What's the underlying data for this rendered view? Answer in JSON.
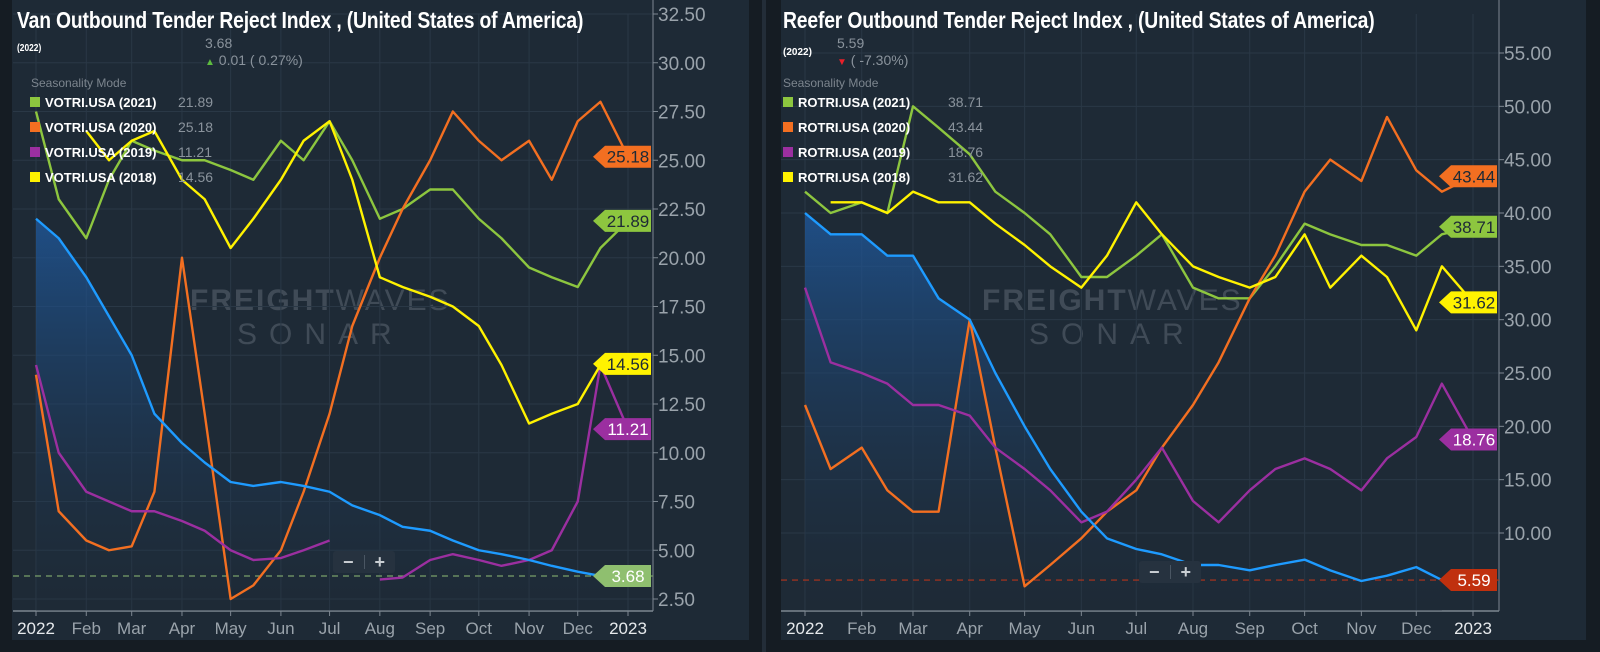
{
  "watermark": {
    "brand_bold": "FREIGHT",
    "brand_light": "WAVES",
    "product": "SONAR"
  },
  "chart_data": [
    {
      "type": "line",
      "title": "Van Outbound Tender Reject Index , (United States of America)",
      "year_tag": "(2022)",
      "current_value": "3.68",
      "change": "0.01 ( 0.27%)",
      "change_direction": "up",
      "mode_label": "Seasonality Mode",
      "ylim": [
        2.5,
        32.5
      ],
      "yticks": [
        "2.50",
        "5.00",
        "7.50",
        "10.00",
        "12.50",
        "15.00",
        "17.50",
        "20.00",
        "22.50",
        "25.00",
        "27.50",
        "30.00",
        "32.50"
      ],
      "xtick_labels": [
        "2022",
        "Feb",
        "Mar",
        "Apr",
        "May",
        "Jun",
        "Jul",
        "Aug",
        "Sep",
        "Oct",
        "Nov",
        "Dec",
        "2023"
      ],
      "grid": true,
      "x": [
        "2022-01-01",
        "2022-01-15",
        "2022-02-01",
        "2022-02-15",
        "2022-03-01",
        "2022-03-15",
        "2022-04-01",
        "2022-04-15",
        "2022-05-01",
        "2022-05-15",
        "2022-06-01",
        "2022-06-15",
        "2022-07-01",
        "2022-07-15",
        "2022-08-01",
        "2022-08-15",
        "2022-09-01",
        "2022-09-15",
        "2022-10-01",
        "2022-10-15",
        "2022-11-01",
        "2022-11-15",
        "2022-12-01",
        "2022-12-15",
        "2023-01-01"
      ],
      "current": {
        "value": 3.68,
        "color": "#1e9bff",
        "flag_color": "#8fbf6f",
        "line_color": "#7aa06a",
        "values": [
          22,
          21,
          19,
          17,
          15,
          12,
          10.5,
          9.5,
          8.5,
          8.3,
          8.5,
          8.3,
          8,
          7.3,
          6.8,
          6.2,
          6,
          5.5,
          5,
          4.8,
          4.5,
          4.2,
          3.9,
          3.68,
          null
        ]
      },
      "series": [
        {
          "name": "VOTRI.USA (2021)",
          "last": "21.89",
          "color": "#8dc63f",
          "values": [
            27.5,
            23,
            21,
            24,
            26,
            25.5,
            25,
            25,
            24.5,
            24,
            26,
            25,
            27,
            25,
            22,
            22.5,
            23.5,
            23.5,
            22,
            21,
            19.5,
            19,
            18.5,
            20.5,
            21.89
          ]
        },
        {
          "name": "VOTRI.USA (2020)",
          "last": "25.18",
          "color": "#f36f21",
          "values": [
            14,
            7,
            5.5,
            5,
            5.2,
            8,
            20,
            12,
            2.5,
            3.2,
            5,
            8,
            12,
            16.5,
            20,
            22.5,
            25,
            27.5,
            26,
            25,
            26,
            24,
            27,
            28,
            25.18
          ]
        },
        {
          "name": "VOTRI.USA (2019)",
          "last": "11.21",
          "color": "#9b2fa0",
          "values": [
            14.5,
            10,
            8,
            7.5,
            7,
            7,
            6.5,
            6,
            5,
            4.5,
            4.6,
            5,
            5.5,
            null,
            3.5,
            3.6,
            4.5,
            4.8,
            4.5,
            4.2,
            4.5,
            5,
            7.5,
            14.5,
            11.21
          ]
        },
        {
          "name": "VOTRI.USA (2018)",
          "last": "14.56",
          "color": "#fff200",
          "values": [
            null,
            null,
            26.5,
            25,
            26,
            26.5,
            24,
            23,
            20.5,
            22,
            24,
            26,
            27,
            24,
            19,
            18.5,
            18,
            17.5,
            16.5,
            14.5,
            11.5,
            12,
            12.5,
            14.5,
            14.56
          ]
        }
      ],
      "zoom_out": "−",
      "zoom_in": "+"
    },
    {
      "type": "line",
      "title": "Reefer Outbound Tender Reject Index , (United States of America)",
      "year_tag": "(2022)",
      "current_value": "5.59",
      "change": "( -7.30%)",
      "change_direction": "down",
      "mode_label": "Seasonality Mode",
      "ylim": [
        5.59,
        55
      ],
      "yticks": [
        "10.00",
        "15.00",
        "20.00",
        "25.00",
        "30.00",
        "35.00",
        "40.00",
        "45.00",
        "50.00",
        "55.00"
      ],
      "xtick_labels": [
        "2022",
        "Feb",
        "Mar",
        "Apr",
        "May",
        "Jun",
        "Jul",
        "Aug",
        "Sep",
        "Oct",
        "Nov",
        "Dec",
        "2023"
      ],
      "grid": true,
      "x": [
        "2022-01-01",
        "2022-01-15",
        "2022-02-01",
        "2022-02-15",
        "2022-03-01",
        "2022-03-15",
        "2022-04-01",
        "2022-04-15",
        "2022-05-01",
        "2022-05-15",
        "2022-06-01",
        "2022-06-15",
        "2022-07-01",
        "2022-07-15",
        "2022-08-01",
        "2022-08-15",
        "2022-09-01",
        "2022-09-15",
        "2022-10-01",
        "2022-10-15",
        "2022-11-01",
        "2022-11-15",
        "2022-12-01",
        "2022-12-15",
        "2023-01-01"
      ],
      "current": {
        "value": 5.59,
        "color": "#1e9bff",
        "flag_color": "#c0300e",
        "line_color": "#b3341c",
        "values": [
          40,
          38,
          38,
          36,
          36,
          32,
          30,
          25,
          20,
          16,
          12,
          9.5,
          8.5,
          8,
          7,
          7,
          6.5,
          7,
          7.5,
          6.5,
          5.5,
          6,
          6.8,
          5.59,
          null
        ]
      },
      "series": [
        {
          "name": "ROTRI.USA (2021)",
          "last": "38.71",
          "color": "#8dc63f",
          "values": [
            42,
            40,
            41,
            40,
            50,
            48,
            45.5,
            42,
            40,
            38,
            34,
            34,
            36,
            38,
            33,
            32,
            32,
            35,
            39,
            38,
            37,
            37,
            36,
            38,
            38.71
          ]
        },
        {
          "name": "ROTRI.USA (2020)",
          "last": "43.44",
          "color": "#f36f21",
          "values": [
            22,
            16,
            18,
            14,
            12,
            12,
            30,
            18,
            5,
            7,
            9.5,
            12,
            14,
            18,
            22,
            26,
            32,
            36,
            42,
            45,
            43,
            49,
            44,
            42,
            43.44
          ]
        },
        {
          "name": "ROTRI.USA (2019)",
          "last": "18.76",
          "color": "#9b2fa0",
          "values": [
            33,
            26,
            25,
            24,
            22,
            22,
            21,
            18,
            16,
            14,
            11,
            12,
            15,
            18,
            13,
            11,
            14,
            16,
            17,
            16,
            14,
            17,
            19,
            24,
            18.76
          ]
        },
        {
          "name": "ROTRI.USA (2018)",
          "last": "31.62",
          "color": "#fff200",
          "values": [
            null,
            41,
            41,
            40,
            42,
            41,
            41,
            39,
            37,
            35,
            33,
            36,
            41,
            38,
            35,
            34,
            33,
            34,
            38,
            33,
            36,
            34,
            29,
            35,
            31.62
          ]
        }
      ],
      "zoom_out": "−",
      "zoom_in": "+"
    }
  ]
}
